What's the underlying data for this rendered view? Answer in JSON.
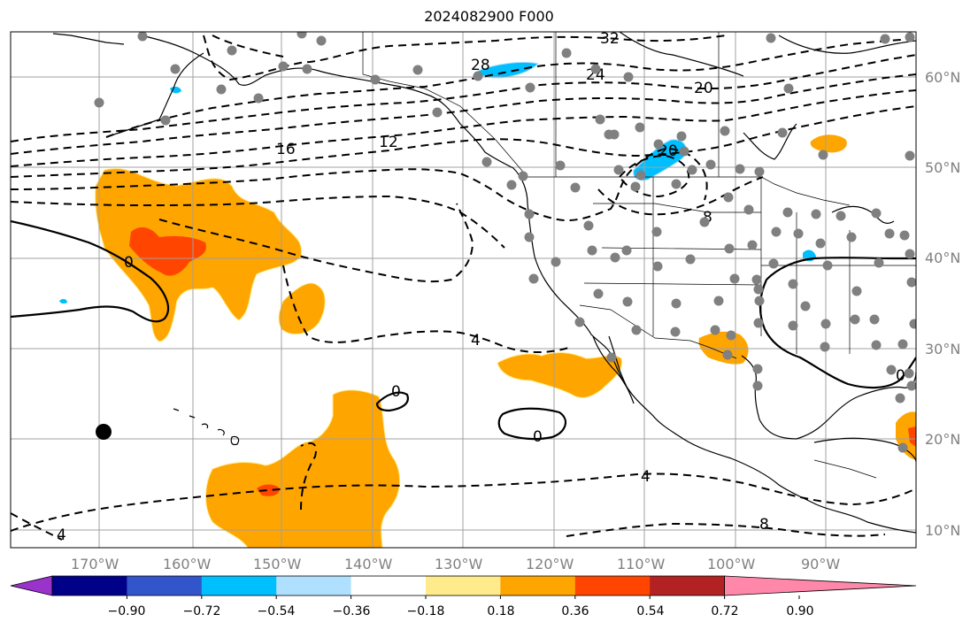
{
  "title": "2024082900 F000",
  "map": {
    "lon_range": [
      -178,
      -82
    ],
    "lat_range": [
      8,
      65
    ],
    "lon_ticks": [
      "170°W",
      "160°W",
      "150°W",
      "140°W",
      "130°W",
      "120°W",
      "110°W",
      "100°W",
      "90°W"
    ],
    "lat_ticks": [
      "60°N",
      "50°N",
      "40°N",
      "30°N",
      "20°N",
      "10°N"
    ],
    "grid": true,
    "contour_labels": [
      "32",
      "28",
      "24",
      "20",
      "16",
      "12",
      "20",
      "8",
      "0",
      "4",
      "0",
      "0",
      "4",
      "8",
      "4",
      "0"
    ],
    "station_marker_color": "#808080",
    "highlight_marker_color": "#000000"
  },
  "colorbar": {
    "ticks": [
      "−0.90",
      "−0.72",
      "−0.54",
      "−0.36",
      "−0.18",
      "0.18",
      "0.36",
      "0.54",
      "0.72",
      "0.90"
    ],
    "colors": [
      "#9933cc",
      "#000088",
      "#3355cc",
      "#00bfff",
      "#b0e0ff",
      "#ffffff",
      "#ffeb8c",
      "#ffa500",
      "#ff4500",
      "#b22222",
      "#ff88aa"
    ],
    "extend": "both"
  }
}
